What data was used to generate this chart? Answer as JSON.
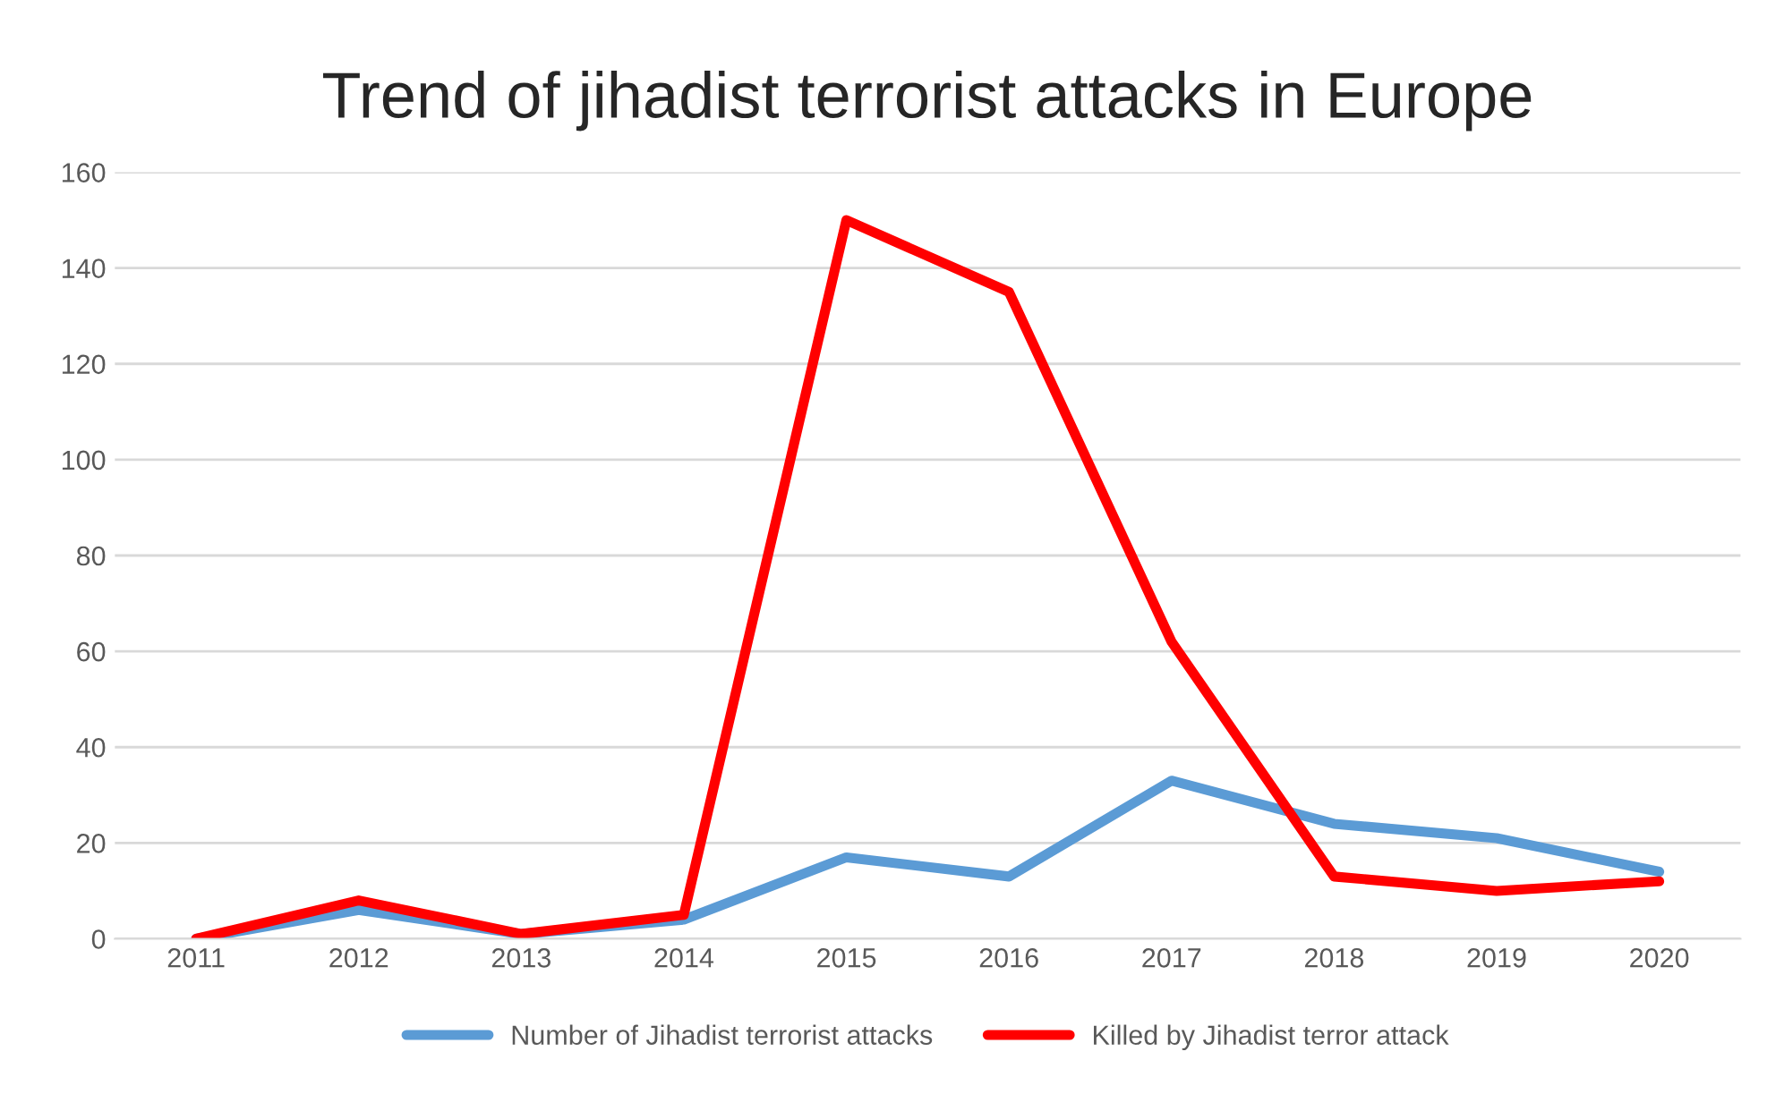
{
  "chart_data": {
    "type": "line",
    "title": "Trend of jihadist terrorist attacks in Europe",
    "categories": [
      "2011",
      "2012",
      "2013",
      "2014",
      "2015",
      "2016",
      "2017",
      "2018",
      "2019",
      "2020"
    ],
    "series": [
      {
        "name": "Number of Jihadist terrorist attacks",
        "color": "#5b9bd5",
        "values": [
          0,
          6,
          1,
          4,
          17,
          13,
          33,
          24,
          21,
          14
        ]
      },
      {
        "name": "Killed by Jihadist terror attack",
        "color": "#ff0000",
        "values": [
          0,
          8,
          1,
          5,
          150,
          135,
          62,
          13,
          10,
          12
        ]
      }
    ],
    "ylim": [
      0,
      160
    ],
    "yticks": [
      0,
      20,
      40,
      60,
      80,
      100,
      120,
      140,
      160
    ],
    "grid": "y",
    "legend": "bottom",
    "marker": "none",
    "line_style": "solid"
  }
}
